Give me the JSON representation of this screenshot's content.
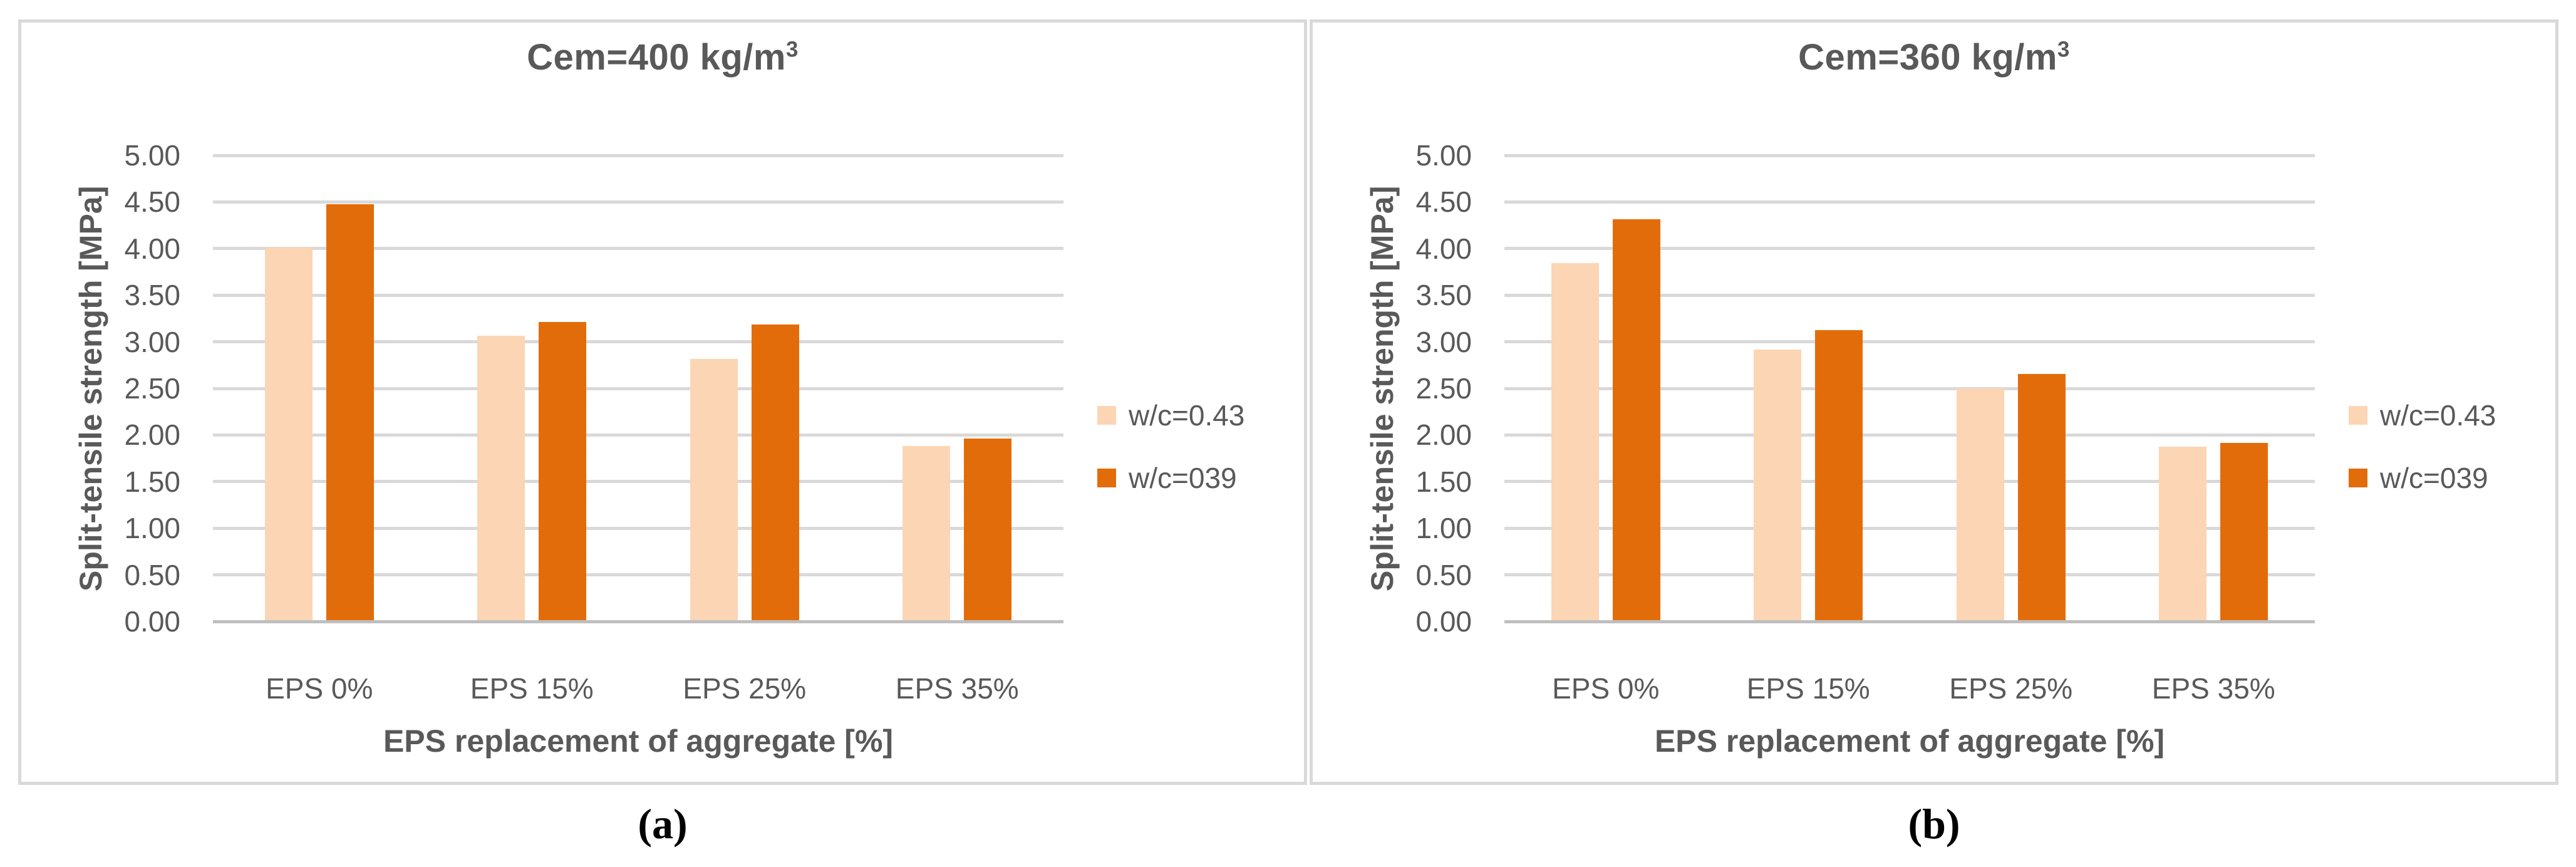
{
  "figure": {
    "captions": [
      "(a)",
      "(b)"
    ],
    "background": "#ffffff",
    "panel_border_color": "#d9d9d9"
  },
  "colors": {
    "text": "#595959",
    "gridline": "#d9d9d9",
    "axis_line": "#bfbfbf",
    "series_light": "#fcd5b4",
    "series_dark": "#e36c0a"
  },
  "chart_data": [
    {
      "type": "bar",
      "title_prefix": "Cem=400 kg/m",
      "title_sup": "3",
      "title_full": "Cem=400 kg/m³",
      "ylabel": "Split-tensile strength [MPa]",
      "xlabel": "EPS replacement of aggregate [%]",
      "categories": [
        "EPS 0%",
        "EPS 15%",
        "EPS 25%",
        "EPS 35%"
      ],
      "series": [
        {
          "name": "w/c=0.43",
          "color": "#fcd5b4",
          "values": [
            4.0,
            3.05,
            2.8,
            1.87
          ]
        },
        {
          "name": "w/c=039",
          "color": "#e36c0a",
          "values": [
            4.46,
            3.2,
            3.17,
            1.95
          ]
        }
      ],
      "ylim": [
        0,
        5
      ],
      "ytick_step": 0.5,
      "ytick_labels": [
        "0.00",
        "0.50",
        "1.00",
        "1.50",
        "2.00",
        "2.50",
        "3.00",
        "3.50",
        "4.00",
        "4.50",
        "5.00"
      ],
      "grid": true,
      "legend_position": "right"
    },
    {
      "type": "bar",
      "title_prefix": "Cem=360 kg/m",
      "title_sup": "3",
      "title_full": "Cem=360 kg/m³",
      "ylabel": "Split-tensile strength [MPa]",
      "xlabel": "EPS replacement of aggregate [%]",
      "categories": [
        "EPS 0%",
        "EPS 15%",
        "EPS 25%",
        "EPS 35%"
      ],
      "series": [
        {
          "name": "w/c=0.43",
          "color": "#fcd5b4",
          "values": [
            3.83,
            2.9,
            2.49,
            1.86
          ]
        },
        {
          "name": "w/c=039",
          "color": "#e36c0a",
          "values": [
            4.3,
            3.11,
            2.64,
            1.9
          ]
        }
      ],
      "ylim": [
        0,
        5
      ],
      "ytick_step": 0.5,
      "ytick_labels": [
        "0.00",
        "0.50",
        "1.00",
        "1.50",
        "2.00",
        "2.50",
        "3.00",
        "3.50",
        "4.00",
        "4.50",
        "5.00"
      ],
      "grid": true,
      "legend_position": "right"
    }
  ]
}
